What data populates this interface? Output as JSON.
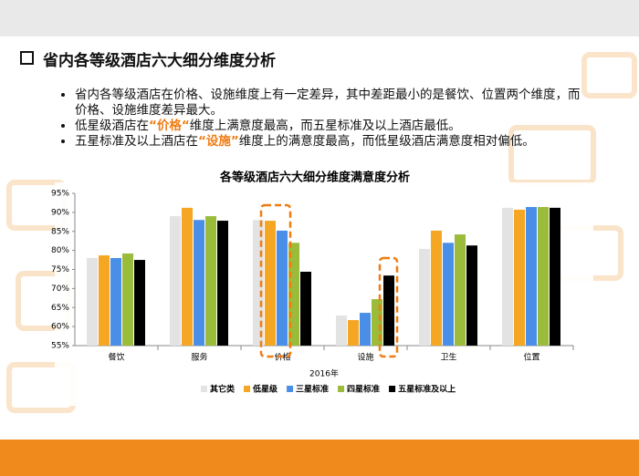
{
  "header": {
    "title": "省内各等级酒店六大细分维度分析"
  },
  "bullets": [
    [
      "省内各等级酒店在价格、设施维度上有一定差异，其中差距最小的是餐饮、位置两个维度，而价格、设施维度差异最大。"
    ],
    [
      "低星级酒店在",
      "“价格“",
      "维度上满意度最高，而五星标准及以上酒店最低。"
    ],
    [
      "五星标准及以上酒店在",
      "“设施”",
      "维度上的满意度最高，而低星级酒店满意度相对偏低。"
    ]
  ],
  "chart_data": {
    "type": "bar",
    "title": "各等级酒店六大细分维度满意度分析",
    "x_label": "2016年",
    "categories": [
      "餐饮",
      "服务",
      "价格",
      "设施",
      "卫生",
      "位置"
    ],
    "series": [
      {
        "name": "其它类",
        "color": "#e3e3e3",
        "values": [
          78,
          89,
          88,
          62.9,
          80.4,
          91.2
        ]
      },
      {
        "name": "低星级",
        "color": "#f5a623",
        "values": [
          78.7,
          91.2,
          87.8,
          61.7,
          85.2,
          90.7
        ]
      },
      {
        "name": "三星标准",
        "color": "#4a8fe7",
        "values": [
          78,
          88,
          85.2,
          63.6,
          82,
          91.4
        ]
      },
      {
        "name": "四星标准",
        "color": "#9bbb3b",
        "values": [
          79.2,
          89,
          82,
          67.2,
          84.2,
          91.4
        ]
      },
      {
        "name": "五星标准及以上",
        "color": "#000000",
        "values": [
          77.5,
          87.8,
          74.4,
          73.4,
          81.3,
          91.2
        ]
      }
    ],
    "ylim": [
      55,
      95
    ],
    "yticks": [
      {
        "value": 55,
        "label": "55%"
      },
      {
        "value": 60,
        "label": "60%"
      },
      {
        "value": 65,
        "label": "65%"
      },
      {
        "value": 70,
        "label": "70%"
      },
      {
        "value": 75,
        "label": "75%"
      },
      {
        "value": 80,
        "label": "80%"
      },
      {
        "value": 85,
        "label": "85%"
      },
      {
        "value": 90,
        "label": "90%"
      },
      {
        "value": 95,
        "label": "95%"
      }
    ],
    "legend": "bottom"
  }
}
